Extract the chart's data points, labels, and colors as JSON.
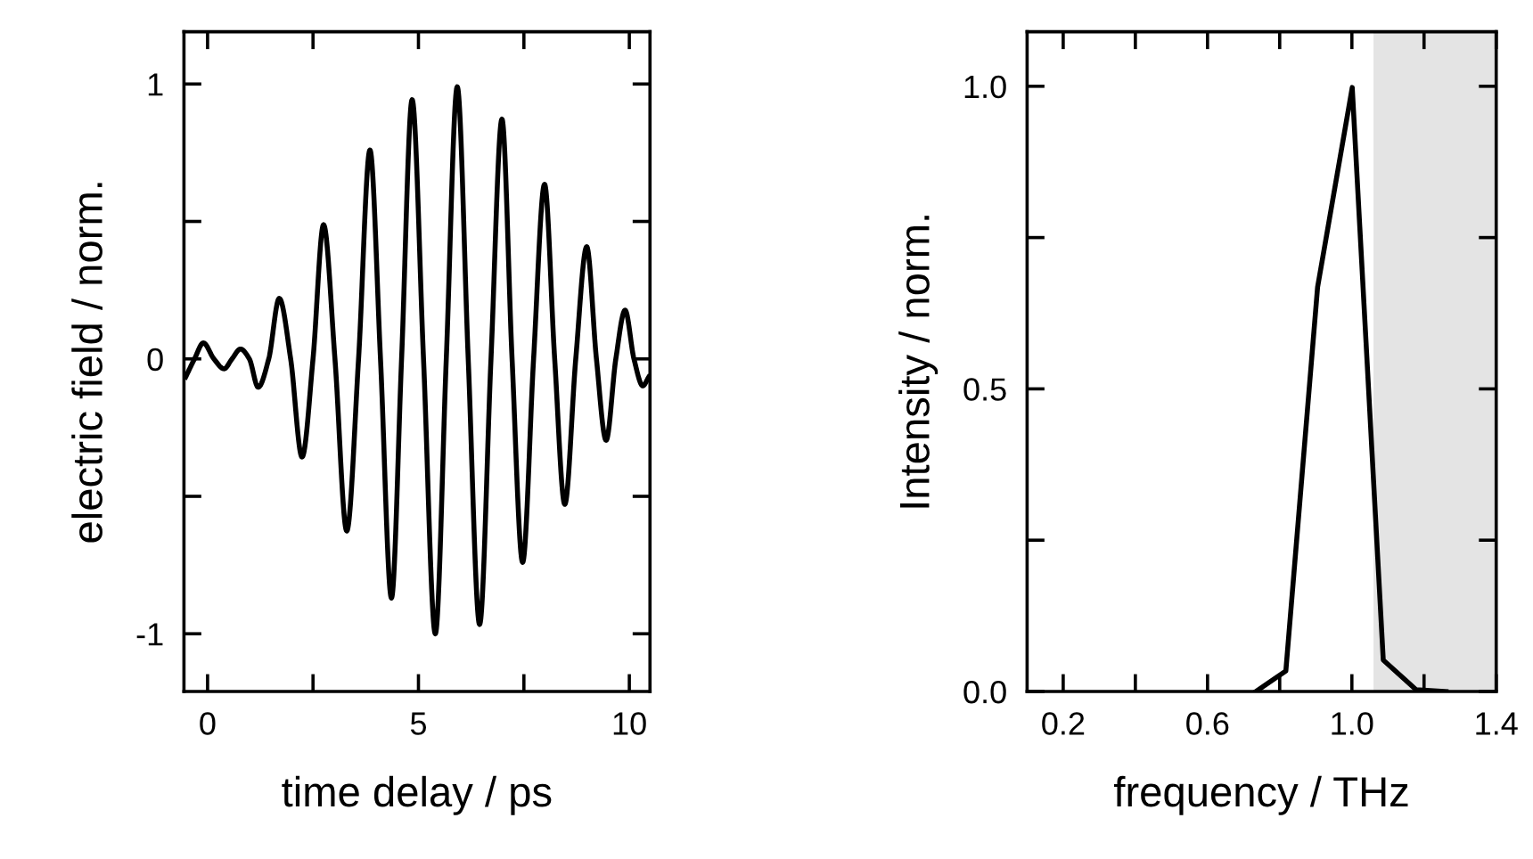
{
  "chart_data": [
    {
      "type": "line",
      "xlabel": "time delay / ps",
      "ylabel": "electric field / norm.",
      "xlim": [
        -0.56,
        10.49
      ],
      "ylim": [
        -1.21,
        1.19
      ],
      "xticks": [
        0,
        {
          "value": 2.5,
          "label": null
        },
        5,
        {
          "value": 7.5,
          "label": null
        },
        10
      ],
      "yticks": [
        -1,
        {
          "value": -0.5,
          "label": null
        },
        0,
        {
          "value": 0.5,
          "label": null
        },
        1
      ],
      "grid": false,
      "legend": false,
      "marker": "none",
      "line_style": "solid",
      "series": [
        {
          "color": "#000000",
          "x": [
            -0.52,
            -0.31,
            -0.1,
            0.15,
            0.39,
            0.58,
            0.78,
            0.99,
            1.2,
            1.45,
            1.7,
            1.97,
            2.24,
            2.5,
            2.75,
            3.02,
            3.3,
            3.58,
            3.85,
            4.1,
            4.36,
            4.6,
            4.85,
            5.12,
            5.4,
            5.66,
            5.92,
            6.18,
            6.45,
            6.72,
            6.98,
            7.22,
            7.47,
            7.73,
            7.99,
            8.23,
            8.47,
            8.73,
            8.99,
            9.22,
            9.45,
            9.68,
            9.9,
            10.11,
            10.32,
            10.46
          ],
          "values": [
            -0.066,
            0,
            0.058,
            0,
            -0.036,
            0,
            0.036,
            0,
            -0.103,
            0,
            0.22,
            0,
            -0.357,
            0,
            0.488,
            0,
            -0.626,
            0,
            0.76,
            0,
            -0.87,
            0,
            0.943,
            0,
            -1.0,
            0,
            0.99,
            0,
            -0.966,
            0,
            0.872,
            0,
            -0.74,
            0,
            0.635,
            0,
            -0.529,
            0,
            0.408,
            0,
            -0.296,
            0,
            0.177,
            0,
            -0.098,
            -0.066
          ]
        }
      ]
    },
    {
      "type": "line",
      "xlabel": "frequency / THz",
      "ylabel": "Intensity / norm.",
      "xlim": [
        0.1,
        1.4
      ],
      "ylim": [
        0,
        1.09
      ],
      "xticks": [
        0.2,
        {
          "value": 0.4,
          "label": null
        },
        0.6,
        {
          "value": 0.8,
          "label": null
        },
        {
          "value": 1,
          "label": "1.0"
        },
        {
          "value": 1.2,
          "label": null
        },
        1.4
      ],
      "yticks": [
        {
          "value": 0,
          "label": "0.0"
        },
        {
          "value": 0.25,
          "label": null
        },
        0.5,
        {
          "value": 0.75,
          "label": null
        },
        {
          "value": 1,
          "label": "1.0"
        }
      ],
      "grid": false,
      "legend": false,
      "marker": "none",
      "line_style": "solid",
      "bands": [
        {
          "axis": "x",
          "from": 1.06,
          "to": 1.4,
          "color": "#e4e4e4"
        }
      ],
      "series": [
        {
          "color": "#000000",
          "x": [
            0.734,
            0.817,
            0.905,
            1.001,
            1.087,
            1.178,
            1.261
          ],
          "values": [
            0,
            0.034,
            0.668,
            0.998,
            0.052,
            0.003,
            0
          ]
        }
      ]
    }
  ]
}
